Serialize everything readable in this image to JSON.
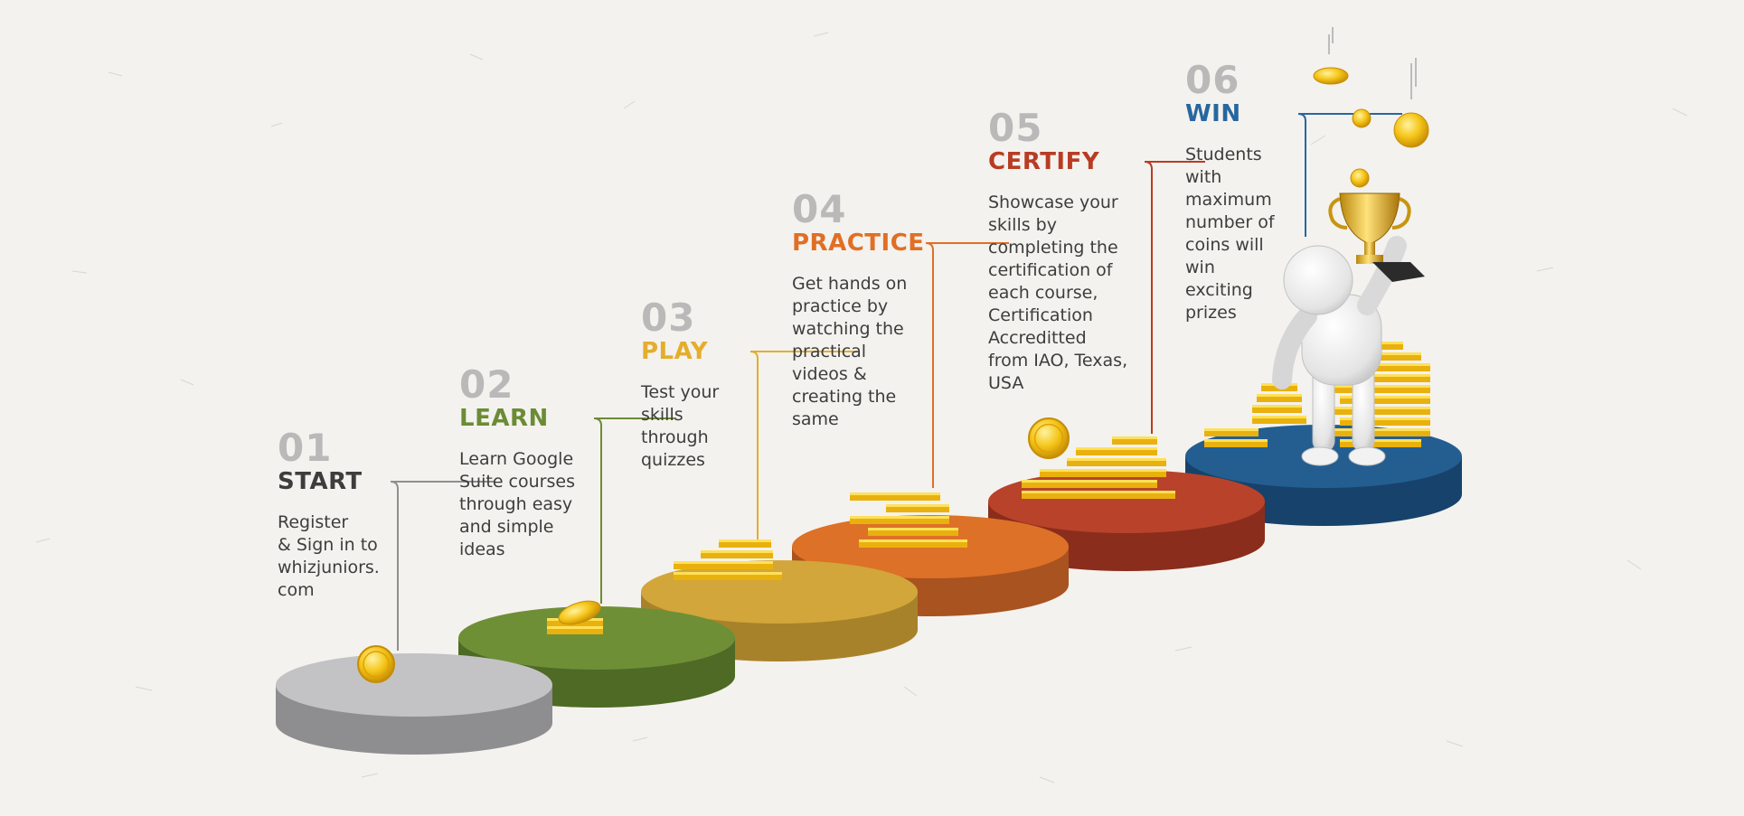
{
  "steps": [
    {
      "num": "01",
      "title": "START",
      "desc": [
        "Register",
        "& Sign in to",
        "whizjuniors.",
        "com"
      ],
      "color": "#3d3d3d",
      "disk": "#c3c3c5",
      "side": "#8e8e90"
    },
    {
      "num": "02",
      "title": "LEARN",
      "desc": [
        "Learn Google",
        "Suite courses",
        "through easy",
        "and simple",
        "ideas"
      ],
      "color": "#6b8c35",
      "disk": "#6f8f37",
      "side": "#4e6a25"
    },
    {
      "num": "03",
      "title": "PLAY",
      "desc": [
        "Test your",
        "skills",
        "through",
        "quizzes"
      ],
      "color": "#e4ad2d",
      "disk": "#d2a63a",
      "side": "#a8822a"
    },
    {
      "num": "04",
      "title": "PRACTICE",
      "desc": [
        "Get hands on",
        "practice by",
        "watching the",
        "practical",
        "videos &",
        "creating the",
        "same"
      ],
      "color": "#e06f25",
      "disk": "#dd7127",
      "side": "#a85320"
    },
    {
      "num": "05",
      "title": "CERTIFY",
      "desc": [
        "Showcase your",
        "skills by",
        "completing the",
        "certification of",
        "each course,",
        "Certification",
        "Accreditted",
        "from IAO, Texas,",
        "USA"
      ],
      "color": "#b83c23",
      "disk": "#b8432a",
      "side": "#8a2d1c"
    },
    {
      "num": "06",
      "title": "WIN",
      "desc": [
        "Students",
        "with",
        "maximum",
        "number of",
        "coins will",
        "win",
        "exciting",
        "prizes"
      ],
      "color": "#27679f",
      "disk": "#245e91",
      "side": "#17426b"
    }
  ],
  "icons": [
    "coin-icon",
    "coin-stack-icon",
    "trophy-icon",
    "figure-icon"
  ]
}
